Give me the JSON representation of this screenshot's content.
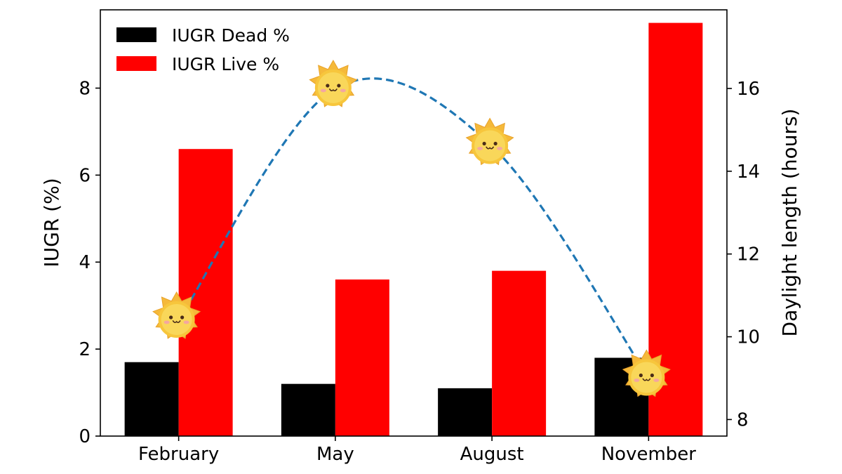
{
  "chart_data": {
    "type": "bar",
    "categories": [
      "February",
      "May",
      "August",
      "November"
    ],
    "series": [
      {
        "name": "IUGR Dead %",
        "values": [
          1.7,
          1.2,
          1.1,
          1.8
        ],
        "color": "#000000"
      },
      {
        "name": "IUGR Live %",
        "values": [
          6.6,
          3.6,
          3.8,
          9.5
        ],
        "color": "#ff0000"
      }
    ],
    "ylabel": "IUGR (%)",
    "ylim": [
      0,
      9.8
    ],
    "yticks": [
      0,
      2,
      4,
      6,
      8
    ],
    "secondary_axis": {
      "ylabel": "Daylight length (hours)",
      "ylim": [
        7.6,
        17.9
      ],
      "yticks": [
        8,
        10,
        12,
        14,
        16
      ],
      "line": {
        "style": "dashed",
        "color": "#1f77b4",
        "marker_icon": "smiling-sun-icon",
        "points": [
          {
            "x": "February",
            "y": 10.4
          },
          {
            "x": "May",
            "y": 16.0
          },
          {
            "x": "August",
            "y": 14.6
          },
          {
            "x": "November",
            "y": 9.0
          }
        ]
      }
    },
    "legend_position": "upper-left",
    "grid": false
  }
}
